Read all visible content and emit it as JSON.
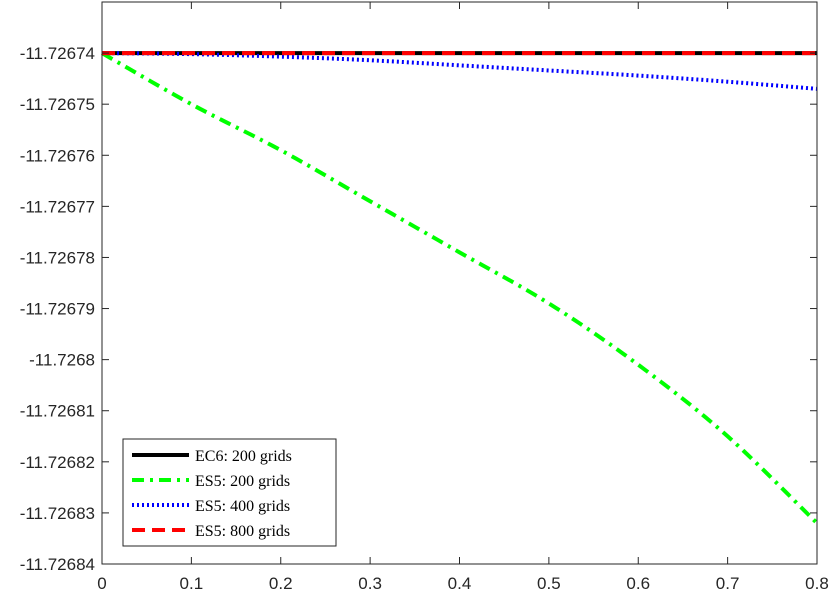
{
  "chart_data": {
    "type": "line",
    "title": "",
    "xlabel": "",
    "ylabel": "",
    "xlim": [
      0,
      0.8
    ],
    "ylim": [
      -11.72684,
      -11.72673
    ],
    "x_ticks": [
      0,
      0.1,
      0.2,
      0.3,
      0.4,
      0.5,
      0.6,
      0.7,
      0.8
    ],
    "x_tick_labels": [
      "0",
      "0.1",
      "0.2",
      "0.3",
      "0.4",
      "0.5",
      "0.6",
      "0.7",
      "0.8"
    ],
    "y_ticks": [
      -11.72674,
      -11.72675,
      -11.72676,
      -11.72677,
      -11.72678,
      -11.72679,
      -11.7268,
      -11.72681,
      -11.72682,
      -11.72683,
      -11.72684
    ],
    "y_tick_labels": [
      "-11.72674",
      "-11.72675",
      "-11.72676",
      "-11.72677",
      "-11.72678",
      "-11.72679",
      "-11.7268",
      "-11.72681",
      "-11.72682",
      "-11.72683",
      "-11.72684"
    ],
    "grid": false,
    "legend_position": "bottom-left",
    "x": [
      0,
      0.1,
      0.2,
      0.3,
      0.4,
      0.5,
      0.6,
      0.7,
      0.8
    ],
    "series": [
      {
        "name": "EC6: 200 grids",
        "color": "#000000",
        "style": "solid",
        "values": [
          -11.72674,
          -11.72674,
          -11.72674,
          -11.72674,
          -11.72674,
          -11.72674,
          -11.72674,
          -11.72674,
          -11.72674
        ]
      },
      {
        "name": "ES5: 200 grids",
        "color": "#00ff00",
        "style": "dashdot",
        "values": [
          -11.72674,
          -11.72675,
          -11.726759,
          -11.726769,
          -11.726779,
          -11.726789,
          -11.726801,
          -11.726815,
          -11.726832
        ]
      },
      {
        "name": "ES5: 400 grids",
        "color": "#0000ff",
        "style": "dotted",
        "values": [
          -11.72674,
          -11.7267402,
          -11.7267407,
          -11.7267414,
          -11.7267424,
          -11.7267434,
          -11.7267444,
          -11.7267456,
          -11.726747
        ]
      },
      {
        "name": "ES5: 800 grids",
        "color": "#ff0000",
        "style": "dashed",
        "values": [
          -11.72674,
          -11.72674,
          -11.72674,
          -11.72674,
          -11.72674,
          -11.72674,
          -11.72674,
          -11.72674,
          -11.72674
        ]
      }
    ]
  }
}
